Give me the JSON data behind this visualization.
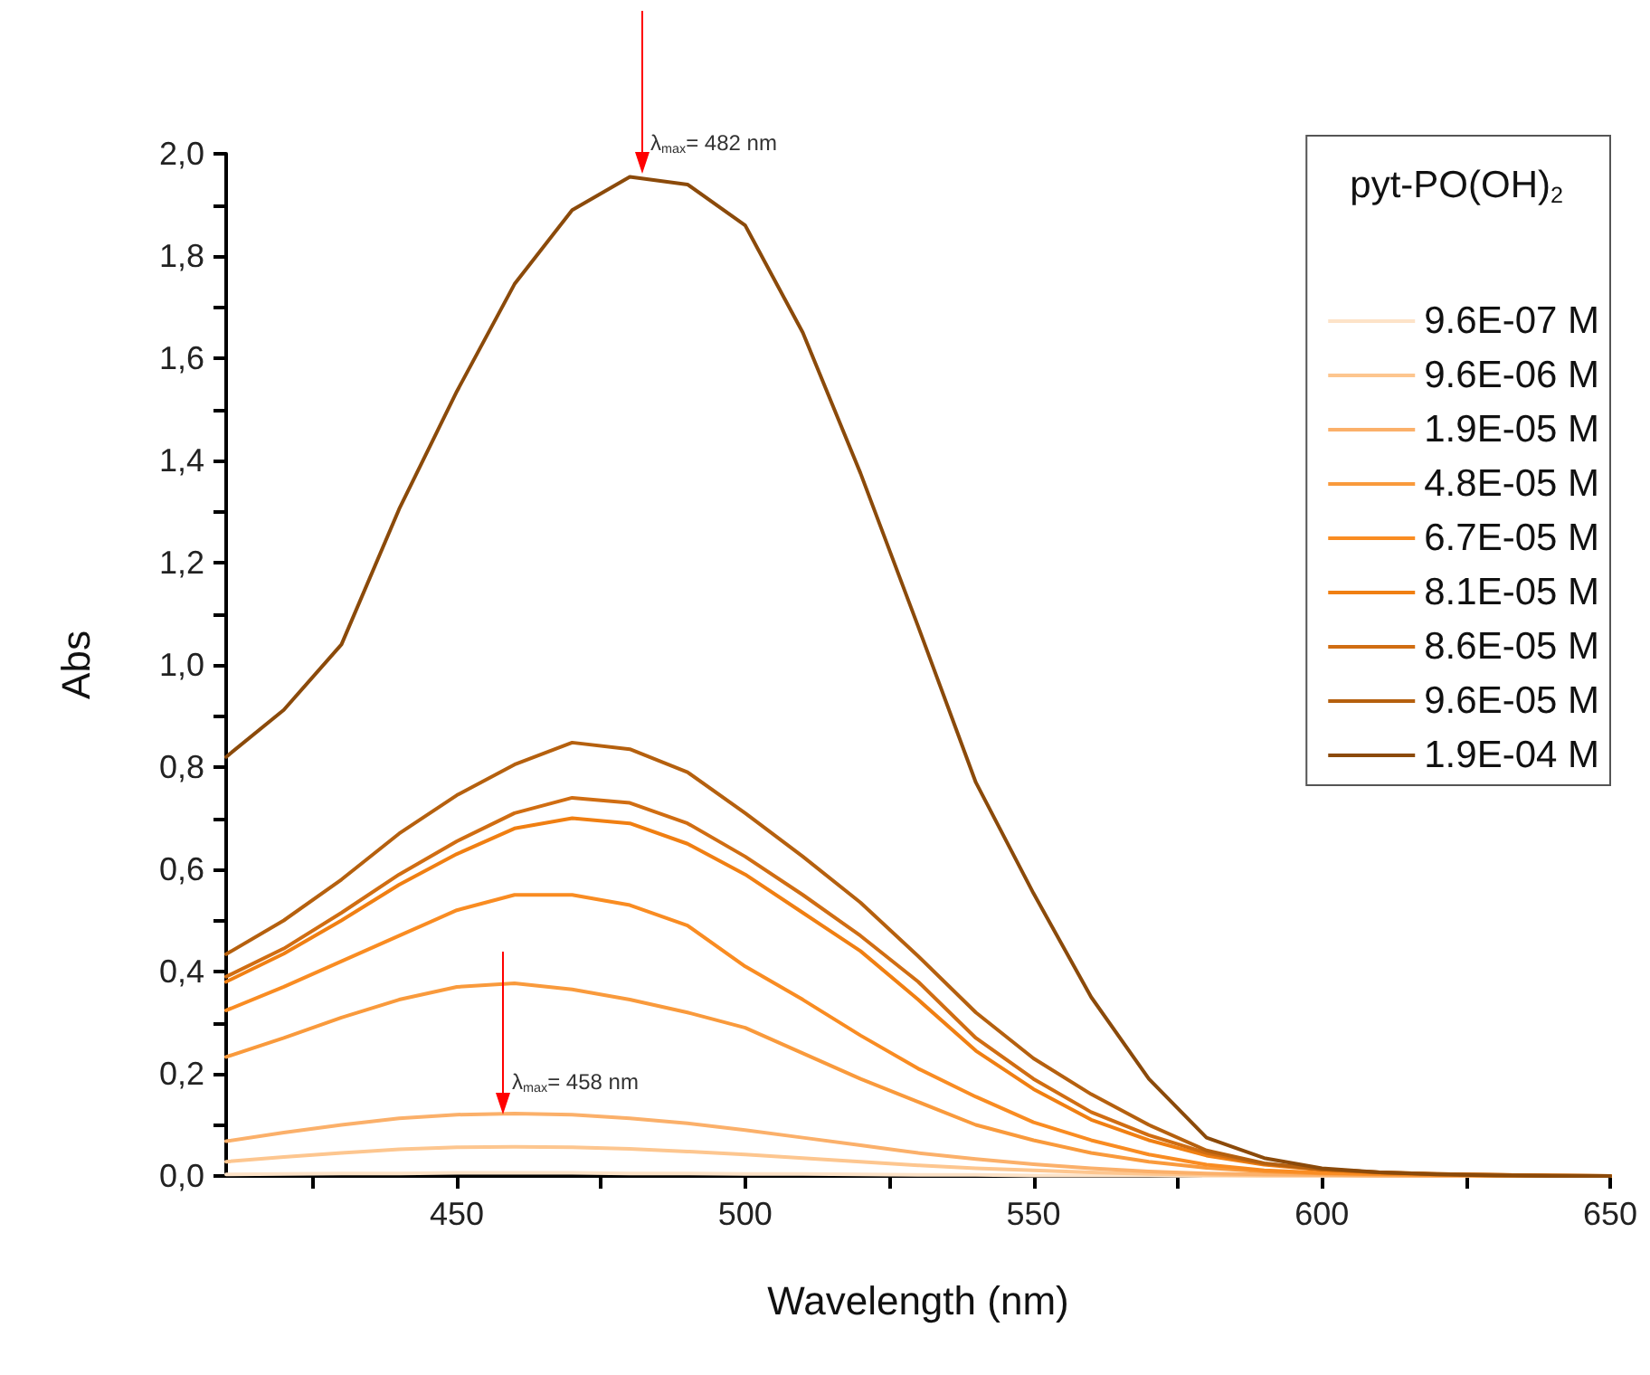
{
  "chart_data": {
    "type": "line",
    "xlabel": "Wavelength (nm)",
    "ylabel": "Abs",
    "legend_title": "pyt-PO(OH)$_{2}$",
    "legend": "top right",
    "marker": "none",
    "x": [
      410,
      420,
      430,
      440,
      450,
      460,
      470,
      480,
      490,
      500,
      510,
      520,
      530,
      540,
      550,
      560,
      570,
      580,
      590,
      600,
      610,
      620,
      630,
      640,
      650
    ],
    "xlim": [
      410,
      650
    ],
    "xticks": [
      {
        "value": 425,
        "label": null
      },
      450,
      {
        "value": 475,
        "label": null
      },
      500,
      {
        "value": 525,
        "label": null
      },
      550,
      {
        "value": 575,
        "label": null
      },
      600,
      {
        "value": 625,
        "label": null
      },
      650
    ],
    "ylim": [
      0,
      2
    ],
    "yticks": [
      {
        "value": 0,
        "label": "0,0"
      },
      {
        "value": 0.1,
        "label": null
      },
      {
        "value": 0.2,
        "label": "0,2"
      },
      {
        "value": 0.3,
        "label": null
      },
      {
        "value": 0.4,
        "label": "0,4"
      },
      {
        "value": 0.5,
        "label": null
      },
      {
        "value": 0.6,
        "label": "0,6"
      },
      {
        "value": 0.7,
        "label": null
      },
      {
        "value": 0.8,
        "label": "0,8"
      },
      {
        "value": 0.9,
        "label": null
      },
      {
        "value": 1.0,
        "label": "1,0"
      },
      {
        "value": 1.1,
        "label": null
      },
      {
        "value": 1.2,
        "label": "1,2"
      },
      {
        "value": 1.3,
        "label": null
      },
      {
        "value": 1.4,
        "label": "1,4"
      },
      {
        "value": 1.5,
        "label": null
      },
      {
        "value": 1.6,
        "label": "1,6"
      },
      {
        "value": 1.7,
        "label": null
      },
      {
        "value": 1.8,
        "label": "1,8"
      },
      {
        "value": 1.9,
        "label": null
      },
      {
        "value": 2.0,
        "label": "2,0"
      }
    ],
    "annotations": [
      {
        "text": "λ$_{max}$= 482 nm",
        "x": 482,
        "y": 1.96
      },
      {
        "text": "λ$_{max}$= 458 nm",
        "x": 458,
        "y": 0.122
      }
    ],
    "series": [
      {
        "name": "9.6E-07 M",
        "color": "#fde3c8",
        "values": [
          0.003,
          0.004,
          0.005,
          0.005,
          0.006,
          0.006,
          0.006,
          0.005,
          0.005,
          0.004,
          0.004,
          0.003,
          0.002,
          0.002,
          0.001,
          0.001,
          0.001,
          0,
          0,
          0,
          0,
          0,
          0,
          0,
          0
        ]
      },
      {
        "name": "9.6E-06 M",
        "color": "#fdc68f",
        "values": [
          0.028,
          0.037,
          0.045,
          0.052,
          0.056,
          0.057,
          0.056,
          0.053,
          0.048,
          0.042,
          0.035,
          0.028,
          0.021,
          0.015,
          0.011,
          0.007,
          0.004,
          0.002,
          0.001,
          0.001,
          0,
          0,
          0,
          0,
          0
        ]
      },
      {
        "name": "1.9E-05 M",
        "color": "#fbb06a",
        "values": [
          0.068,
          0.085,
          0.1,
          0.113,
          0.12,
          0.122,
          0.12,
          0.113,
          0.103,
          0.09,
          0.075,
          0.06,
          0.045,
          0.033,
          0.023,
          0.015,
          0.009,
          0.005,
          0.003,
          0.002,
          0.001,
          0,
          0,
          0,
          0
        ]
      },
      {
        "name": "4.8E-05 M",
        "color": "#f99a3c",
        "values": [
          0.233,
          0.27,
          0.31,
          0.345,
          0.37,
          0.377,
          0.365,
          0.345,
          0.32,
          0.29,
          0.24,
          0.19,
          0.145,
          0.1,
          0.07,
          0.045,
          0.028,
          0.016,
          0.009,
          0.005,
          0.003,
          0.002,
          0.001,
          0,
          0
        ]
      },
      {
        "name": "6.7E-05 M",
        "color": "#f98c22",
        "values": [
          0.324,
          0.37,
          0.42,
          0.47,
          0.52,
          0.55,
          0.55,
          0.53,
          0.49,
          0.41,
          0.345,
          0.275,
          0.21,
          0.155,
          0.105,
          0.07,
          0.042,
          0.022,
          0.011,
          0.006,
          0.004,
          0.002,
          0.001,
          0,
          0
        ]
      },
      {
        "name": "8.1E-05 M",
        "color": "#f07f12",
        "values": [
          0.38,
          0.435,
          0.5,
          0.57,
          0.63,
          0.68,
          0.7,
          0.69,
          0.65,
          0.59,
          0.515,
          0.44,
          0.345,
          0.245,
          0.17,
          0.11,
          0.07,
          0.04,
          0.022,
          0.012,
          0.006,
          0.003,
          0.002,
          0.001,
          0
        ]
      },
      {
        "name": "8.6E-05 M",
        "color": "#d06d12",
        "values": [
          0.39,
          0.445,
          0.515,
          0.59,
          0.655,
          0.71,
          0.74,
          0.73,
          0.69,
          0.625,
          0.55,
          0.47,
          0.38,
          0.27,
          0.19,
          0.125,
          0.08,
          0.045,
          0.024,
          0.013,
          0.007,
          0.004,
          0.002,
          0.001,
          0
        ]
      },
      {
        "name": "9.6E-05 M",
        "color": "#b5600e",
        "values": [
          0.434,
          0.5,
          0.58,
          0.67,
          0.745,
          0.805,
          0.848,
          0.835,
          0.79,
          0.71,
          0.625,
          0.535,
          0.43,
          0.32,
          0.23,
          0.16,
          0.1,
          0.05,
          0.025,
          0.013,
          0.007,
          0.004,
          0.002,
          0.001,
          0
        ]
      },
      {
        "name": "1.9E-04 M",
        "color": "#8b4a0a",
        "values": [
          0.82,
          0.912,
          1.04,
          1.305,
          1.535,
          1.745,
          1.89,
          1.955,
          1.94,
          1.86,
          1.65,
          1.375,
          1.075,
          0.77,
          0.553,
          0.35,
          0.19,
          0.075,
          0.035,
          0.015,
          0.007,
          0.003,
          0.001,
          0,
          0
        ]
      }
    ]
  }
}
